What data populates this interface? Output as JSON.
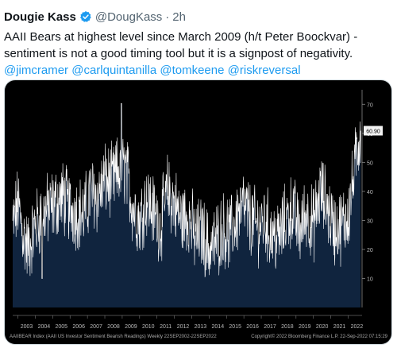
{
  "tweet": {
    "author_name": "Dougie Kass",
    "handle": "@DougKass",
    "separator": "·",
    "time": "2h",
    "text": "AAII Bears at highest level since March 2009 (h/t Peter Boockvar) - sentiment is not a good timing tool but it is a signpost of negativity.",
    "mentions": [
      "@jimcramer",
      "@carlquintanilla",
      "@tomkeene",
      "@riskreversal"
    ],
    "colors": {
      "link": "#1d9bf0",
      "verified": "#1d9bf0",
      "text": "#0f1419",
      "muted": "#536471"
    },
    "icons": {
      "verified": "verified-badge-icon"
    }
  },
  "chart_data": {
    "type": "area",
    "background": "#000000",
    "fill_color": "#10243e",
    "line_color": "#ffffff",
    "x_tick_labels": [
      "2003",
      "2004",
      "2005",
      "2006",
      "2007",
      "2008",
      "2009",
      "2010",
      "2011",
      "2012",
      "2013",
      "2014",
      "2015",
      "2016",
      "2017",
      "2018",
      "2019",
      "2020",
      "2021",
      "2022"
    ],
    "y_ticks": [
      10,
      20,
      30,
      40,
      50,
      60,
      70
    ],
    "ylim": [
      0,
      75
    ],
    "xlim": [
      2002.7,
      2022.8
    ],
    "last_value_label": "60.90",
    "last_value": 60.9,
    "footer_left": "AAIIBEAR Index (AAII US Investor Sentiment Bearish Readings)  Weekly 22SEP2002-22SEP2022",
    "footer_right": "Copyright© 2022 Bloomberg Finance L.P.     22-Sep-2022 07:15:29",
    "series": [
      {
        "x": [
          2002.7,
          2003.0,
          2003.3,
          2003.6,
          2004.0,
          2004.4,
          2004.8,
          2005.2,
          2005.6,
          2006.0,
          2006.4,
          2006.8,
          2007.2,
          2007.6,
          2008.0,
          2008.4,
          2008.8,
          2009.2,
          2009.6,
          2010.0,
          2010.4,
          2010.8,
          2011.2,
          2011.6,
          2012.0,
          2012.4,
          2012.8,
          2013.2,
          2013.6,
          2014.0,
          2014.4,
          2014.8,
          2015.2,
          2015.6,
          2016.0,
          2016.4,
          2016.8,
          2017.2,
          2017.6,
          2018.0,
          2018.4,
          2018.8,
          2019.2,
          2019.6,
          2020.0,
          2020.4,
          2020.8,
          2021.2,
          2021.6,
          2022.0,
          2022.3,
          2022.55,
          2022.72
        ],
        "y": [
          28,
          36,
          25,
          20,
          28,
          32,
          34,
          36,
          38,
          34,
          33,
          32,
          40,
          38,
          44,
          43,
          47,
          48,
          35,
          30,
          38,
          33,
          28,
          40,
          36,
          30,
          32,
          24,
          26,
          20,
          23,
          27,
          25,
          31,
          35,
          30,
          28,
          30,
          25,
          24,
          30,
          34,
          26,
          33,
          28,
          40,
          35,
          27,
          28,
          32,
          44,
          56,
          60.9
        ]
      }
    ]
  }
}
